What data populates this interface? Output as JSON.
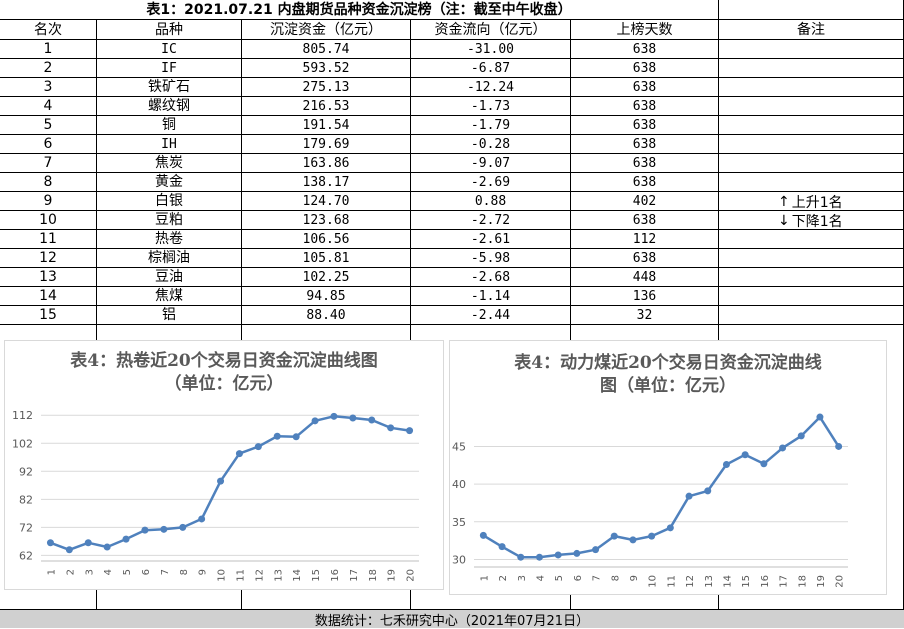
{
  "table": {
    "title": "表1：2021.07.21 内盘期货品种资金沉淀榜（注：截至中午收盘）",
    "headers": [
      "名次",
      "品种",
      "沉淀资金（亿元）",
      "资金流向（亿元）",
      "上榜天数",
      "备注"
    ],
    "rows": [
      [
        "1",
        "IC",
        "805.74",
        "-31.00",
        "638"
      ],
      [
        "2",
        "IF",
        "593.52",
        "-6.87",
        "638"
      ],
      [
        "3",
        "铁矿石",
        "275.13",
        "-12.24",
        "638"
      ],
      [
        "4",
        "螺纹钢",
        "216.53",
        "-1.73",
        "638"
      ],
      [
        "5",
        "铜",
        "191.54",
        "-1.79",
        "638"
      ],
      [
        "6",
        "IH",
        "179.69",
        "-0.28",
        "638"
      ],
      [
        "7",
        "焦炭",
        "163.86",
        "-9.07",
        "638"
      ],
      [
        "8",
        "黄金",
        "138.17",
        "-2.69",
        "638"
      ],
      [
        "9",
        "白银",
        "124.70",
        "0.88",
        "402"
      ],
      [
        "10",
        "豆粕",
        "123.68",
        "-2.72",
        "638"
      ],
      [
        "11",
        "热卷",
        "106.56",
        "-2.61",
        "112"
      ],
      [
        "12",
        "棕榈油",
        "105.81",
        "-5.98",
        "638"
      ],
      [
        "13",
        "豆油",
        "102.25",
        "-2.68",
        "448"
      ],
      [
        "14",
        "焦煤",
        "94.85",
        "-1.14",
        "136"
      ],
      [
        "15",
        "铝",
        "88.40",
        "-2.44",
        "32"
      ]
    ],
    "notes": {
      "up_arrow": "↑",
      "up_label": "上升1名",
      "down_arrow": "↓",
      "down_label": "下降1名"
    }
  },
  "footer": "数据统计：七禾研究中心（2021年07月21日）",
  "chart_data": [
    {
      "type": "line",
      "title_line1": "表4：热卷近20个交易日资金沉淀曲线图",
      "title_line2": "（单位：亿元）",
      "x": [
        "1",
        "2",
        "3",
        "4",
        "5",
        "6",
        "7",
        "8",
        "9",
        "10",
        "11",
        "12",
        "13",
        "14",
        "15",
        "16",
        "17",
        "18",
        "19",
        "20"
      ],
      "values": [
        66.5,
        64.0,
        66.5,
        65.0,
        67.8,
        71.0,
        71.3,
        72.0,
        75.0,
        88.5,
        98.3,
        100.8,
        104.5,
        104.3,
        110.0,
        111.6,
        111.0,
        110.3,
        107.5,
        106.5
      ],
      "yticks": [
        62,
        72,
        82,
        92,
        102,
        112
      ],
      "ylim": [
        60,
        116
      ],
      "color": "#4f81bd",
      "grid": true
    },
    {
      "type": "line",
      "title_line1": "表4：动力煤近20个交易日资金沉淀曲线",
      "title_line2": "图（单位：亿元）",
      "x": [
        "1",
        "2",
        "3",
        "4",
        "5",
        "6",
        "7",
        "8",
        "9",
        "10",
        "11",
        "12",
        "13",
        "14",
        "15",
        "16",
        "17",
        "18",
        "19",
        "20"
      ],
      "values": [
        33.2,
        31.7,
        30.3,
        30.3,
        30.6,
        30.8,
        31.3,
        33.1,
        32.6,
        33.1,
        34.2,
        38.4,
        39.1,
        42.6,
        43.9,
        42.7,
        44.8,
        46.4,
        48.9,
        45.0
      ],
      "yticks": [
        30,
        35,
        40,
        45
      ],
      "ylim": [
        29,
        50.5
      ],
      "color": "#4f81bd",
      "grid": true
    }
  ]
}
